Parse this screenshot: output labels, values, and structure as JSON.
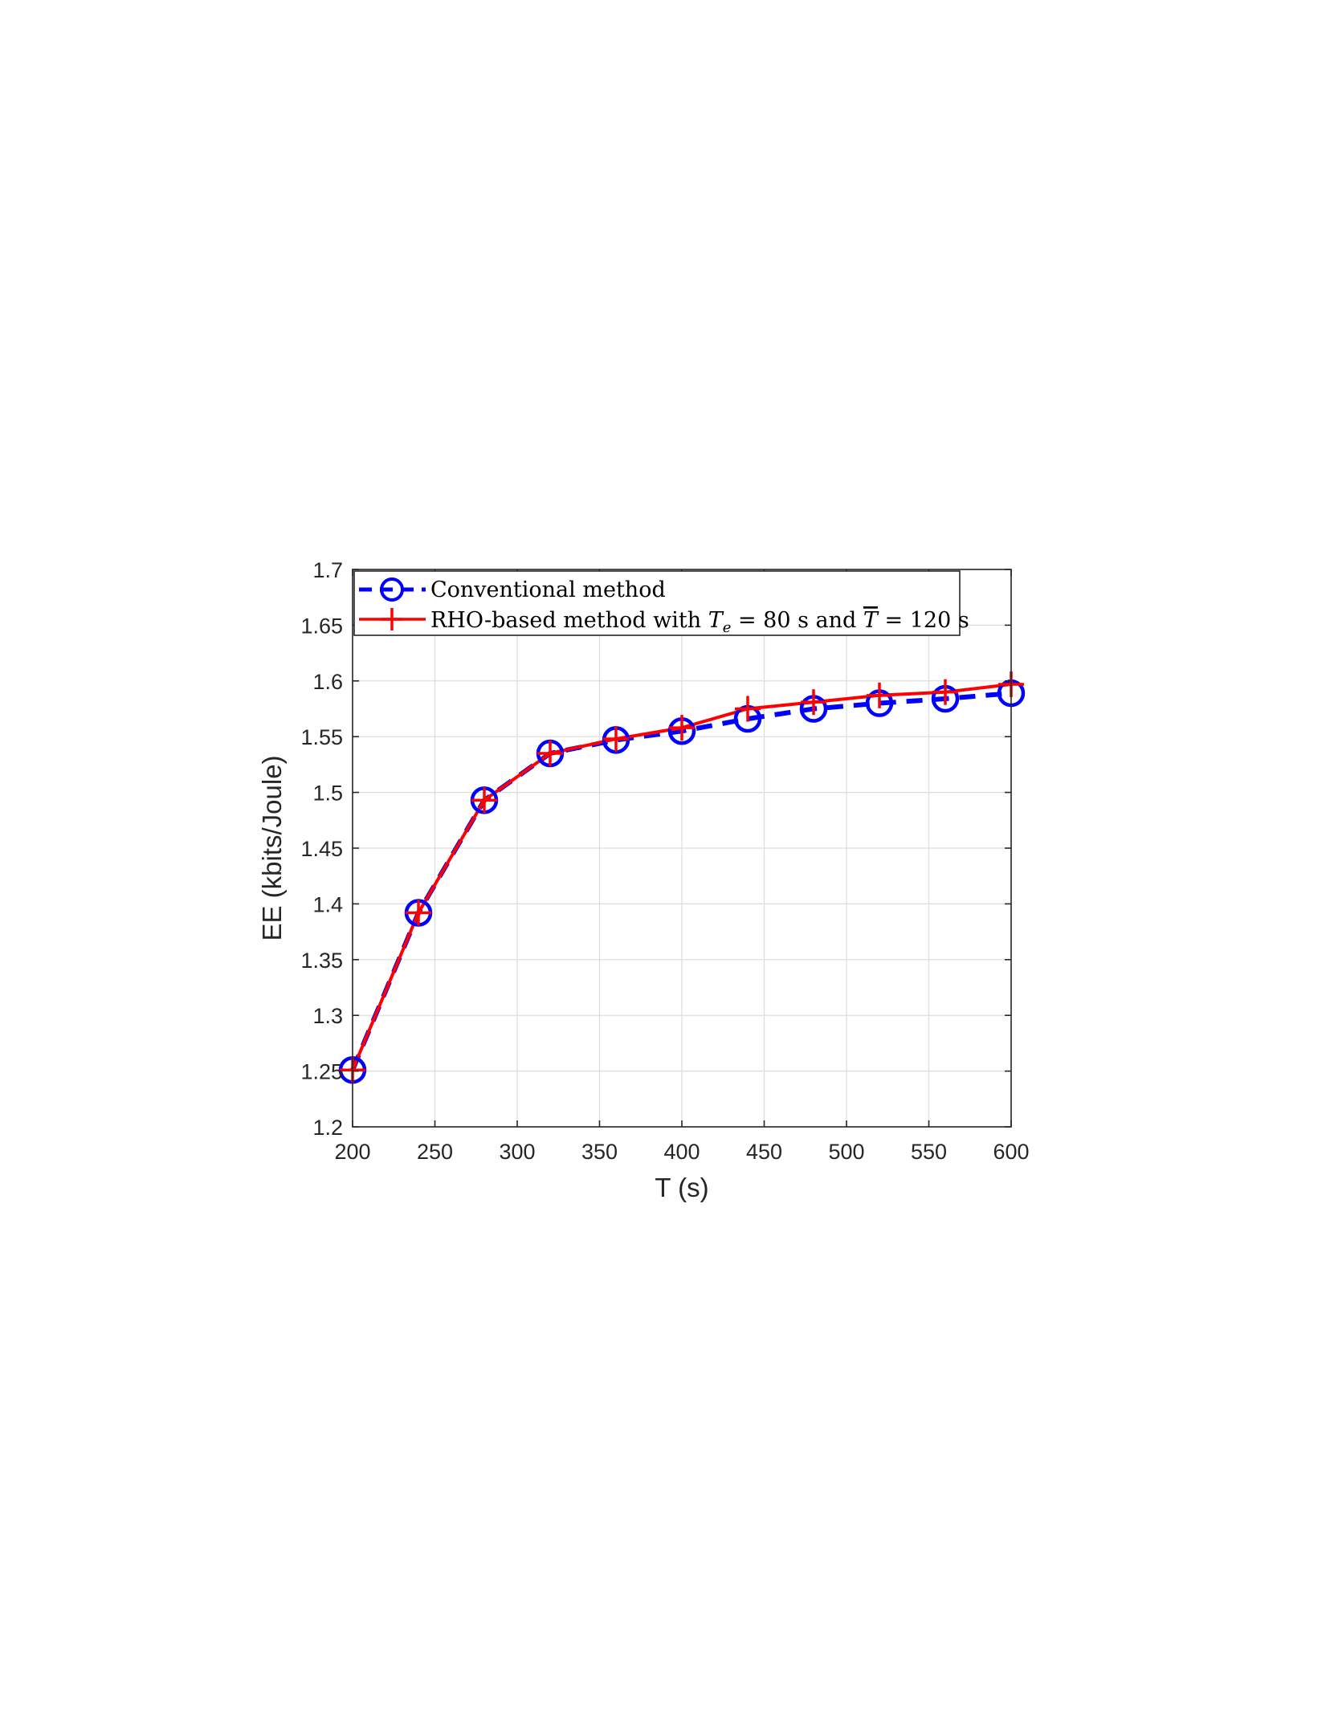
{
  "chart_data": {
    "type": "line",
    "xlabel": "T (s)",
    "ylabel": "EE (kbits/Joule)",
    "xlim": [
      200,
      600
    ],
    "ylim": [
      1.2,
      1.7
    ],
    "xticks": [
      "200",
      "250",
      "300",
      "350",
      "400",
      "450",
      "500",
      "550",
      "600"
    ],
    "yticks": [
      "1.2",
      "1.25",
      "1.3",
      "1.35",
      "1.4",
      "1.45",
      "1.5",
      "1.55",
      "1.6",
      "1.65",
      "1.7"
    ],
    "grid": true,
    "legend_position": "top-left",
    "x": [
      200,
      240,
      280,
      320,
      360,
      400,
      440,
      480,
      520,
      560,
      600
    ],
    "series": [
      {
        "name": "Conventional method",
        "values": [
          1.251,
          1.392,
          1.493,
          1.535,
          1.547,
          1.555,
          1.566,
          1.575,
          1.58,
          1.584,
          1.589
        ],
        "color": "#0000ff",
        "line": "dashed",
        "marker": "circle"
      },
      {
        "name": "RHO-based method with Te = 80 s and T̄ = 120 s",
        "values": [
          1.251,
          1.392,
          1.493,
          1.535,
          1.548,
          1.558,
          1.575,
          1.581,
          1.587,
          1.59,
          1.597
        ],
        "color": "#ff0000",
        "line": "solid",
        "marker": "plus"
      }
    ]
  }
}
